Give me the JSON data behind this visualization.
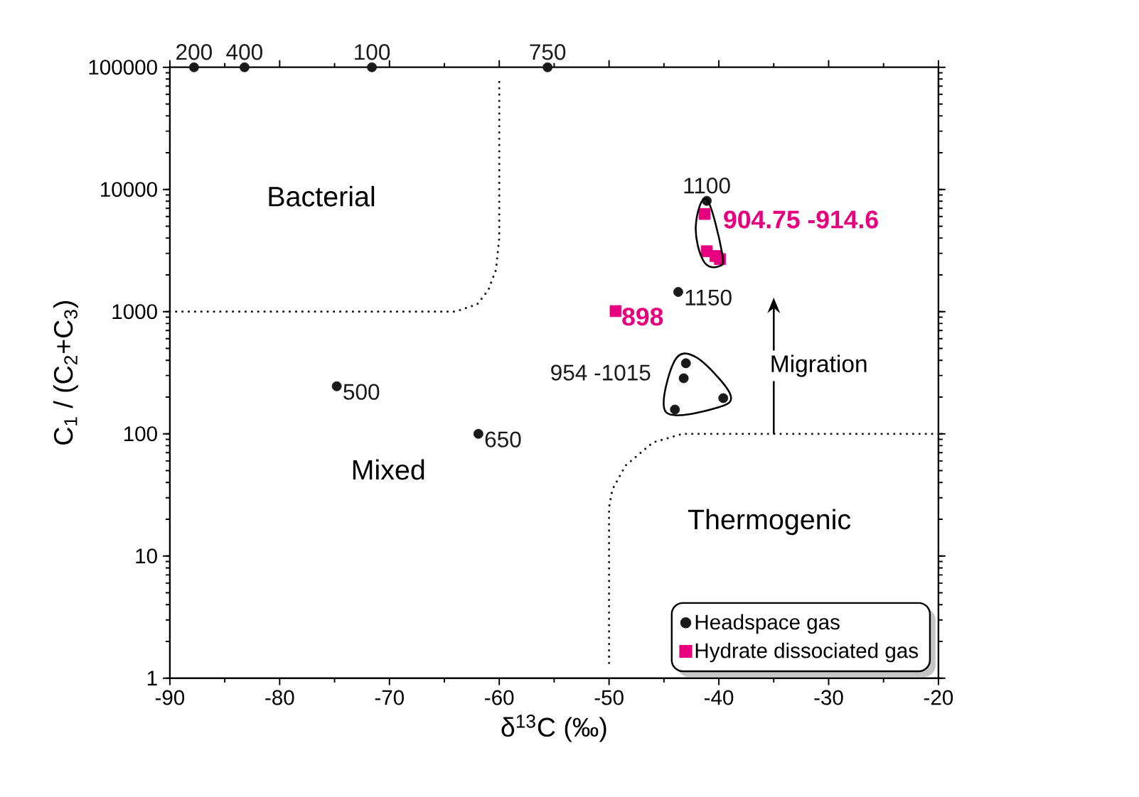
{
  "chart_data": {
    "type": "scatter",
    "xlabel": "δ$^{13}$C (‰)",
    "ylabel": "C$_{1}$ / (C$_{2}$+C$_{3}$)",
    "xlim": [
      -90,
      -20
    ],
    "ylim": [
      1,
      100000
    ],
    "xticks": [
      -90,
      -80,
      -70,
      -60,
      -50,
      -40,
      -30,
      -20
    ],
    "yticks": [
      1,
      10,
      100,
      1000,
      10000,
      100000
    ],
    "log": "y",
    "legend": "bottom right",
    "series": [
      {
        "name": "Headspace gas",
        "color": "#1a1a1a",
        "marker": "circle",
        "x": [
          -87.8,
          -83.2,
          -71.6,
          -55.6,
          -74.8,
          -61.9,
          -41.1,
          -43.7,
          -43.0,
          -43.2,
          -39.6,
          -44.0
        ],
        "values": [
          100000,
          100000,
          100000,
          100000,
          245,
          100,
          8070,
          1450,
          378,
          285,
          196,
          158
        ]
      },
      {
        "name": "Hydrate dissociated gas",
        "color": "#e6007e",
        "marker": "square",
        "x": [
          -41.3,
          -41.1,
          -40.3,
          -39.9,
          -49.4
        ],
        "values": [
          6300,
          3120,
          2850,
          2690,
          1010
        ]
      },
      {
        "type": "line",
        "color": "#1a1a1a",
        "marker": "none",
        "line_style": "dotted",
        "x": [
          -90,
          -64,
          -62,
          -61,
          -60.3,
          -60,
          -60
        ],
        "values": [
          1000,
          1000,
          1150,
          1500,
          2200,
          4000,
          80000
        ]
      },
      {
        "type": "line",
        "color": "#1a1a1a",
        "marker": "none",
        "line_style": "dotted",
        "x": [
          -20,
          -43.3,
          -46,
          -48.5,
          -49.7,
          -50,
          -50
        ],
        "values": [
          100,
          100,
          85,
          55,
          35,
          25,
          1.27
        ]
      }
    ],
    "annotations": [
      "Bacterial",
      "Mixed",
      "Thermogenic",
      "Migration",
      {
        "text": "200",
        "x": -87.8,
        "y": 100000
      },
      {
        "text": "400",
        "x": -83.2,
        "y": 100000
      },
      {
        "text": "100",
        "x": -71.6,
        "y": 100000
      },
      {
        "text": "750",
        "x": -55.6,
        "y": 100000
      },
      {
        "text": "500",
        "x": -74.8,
        "y": 245
      },
      {
        "text": "650",
        "x": -61.9,
        "y": 100
      },
      {
        "text": "1100",
        "x": -41.1,
        "y": 8070
      },
      {
        "text": "1150",
        "x": -43.7,
        "y": 1450
      },
      {
        "text": "954 -1015",
        "x": -43.2,
        "y": 285
      },
      {
        "text": "**904.75 -914.6**",
        "x": -41.3,
        "y": 6300
      },
      {
        "text": "**898**",
        "x": -49.4,
        "y": 1010
      }
    ]
  }
}
